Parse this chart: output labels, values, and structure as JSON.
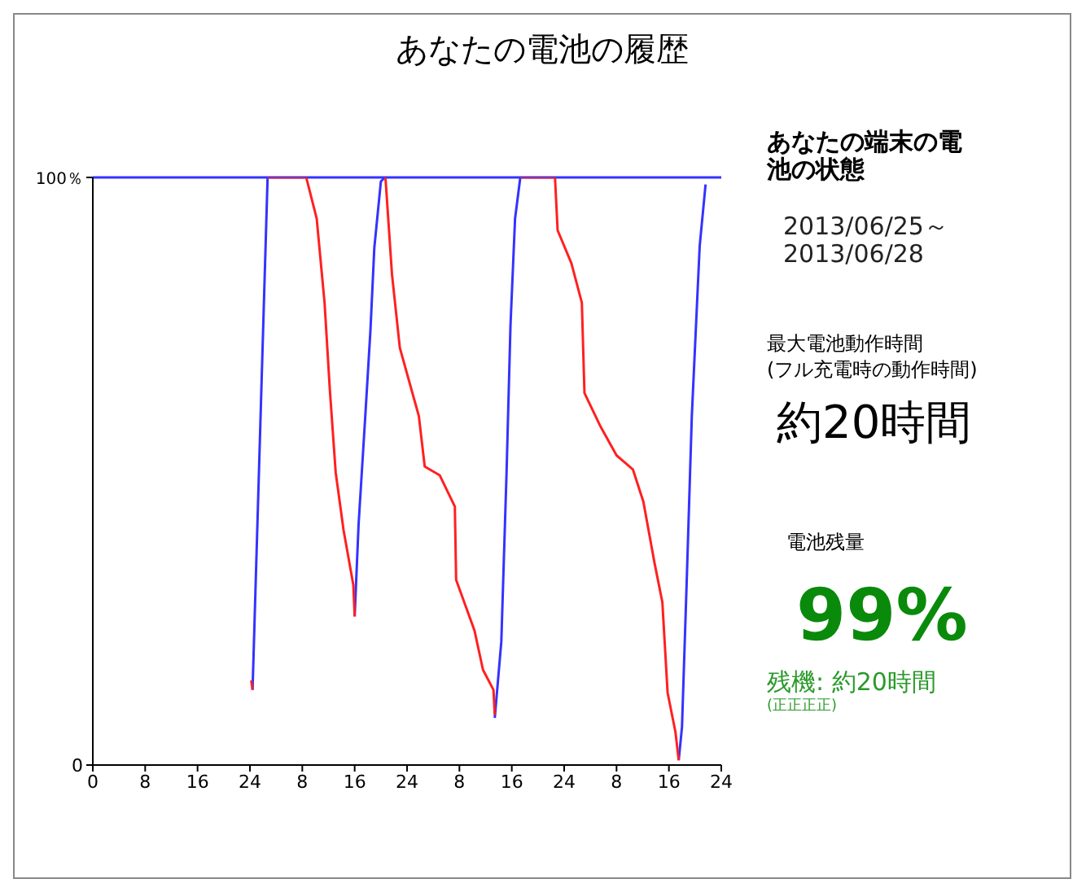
{
  "chart_data": {
    "type": "line",
    "title": "あなたの電池の履歴",
    "xlim": [
      "2013-06-25T00:00",
      "2013-06-29T00:00"
    ],
    "xticks": [
      {
        "value": "2013-06-25T00:00",
        "label": "0"
      },
      {
        "value": "2013-06-25T08:00",
        "label": "8"
      },
      {
        "value": "2013-06-25T16:00",
        "label": "16"
      },
      {
        "value": "2013-06-26T00:00",
        "label": "24"
      },
      {
        "value": "2013-06-26T08:00",
        "label": "8"
      },
      {
        "value": "2013-06-26T16:00",
        "label": "16"
      },
      {
        "value": "2013-06-27T00:00",
        "label": "24"
      },
      {
        "value": "2013-06-27T08:00",
        "label": "8"
      },
      {
        "value": "2013-06-27T16:00",
        "label": "16"
      },
      {
        "value": "2013-06-28T00:00",
        "label": "24"
      },
      {
        "value": "2013-06-28T08:00",
        "label": "8"
      },
      {
        "value": "2013-06-28T16:00",
        "label": "16"
      },
      {
        "value": "2013-06-29T00:00",
        "label": "24"
      }
    ],
    "ylim": [
      0,
      100
    ],
    "yticks": [
      0,
      {
        "value": 100,
        "label": "100％"
      }
    ],
    "grid": false,
    "legend": false,
    "marker": "none",
    "line_style": "solid",
    "ref_lines": [
      {
        "axis": "y",
        "value": 100,
        "color": "#3333ff"
      }
    ],
    "series": [
      {
        "color": "#3333ff",
        "x": [
          "2013-06-26T00:24",
          "2013-06-26T02:42"
        ],
        "values": [
          12.8,
          100
        ]
      },
      {
        "color": "#3333ff",
        "x": [
          "2013-06-26T16:00",
          "2013-06-26T16:36",
          "2013-06-26T17:36",
          "2013-06-26T18:24",
          "2013-06-26T19:00",
          "2013-06-26T20:00",
          "2013-06-26T20:36"
        ],
        "values": [
          25.3,
          41,
          59,
          73.8,
          88,
          99.3,
          100
        ]
      },
      {
        "color": "#3333ff",
        "x": [
          "2013-06-27T13:24",
          "2013-06-27T14:24",
          "2013-06-27T15:12",
          "2013-06-27T15:48",
          "2013-06-27T16:30",
          "2013-06-27T17:18"
        ],
        "values": [
          8,
          21,
          49.8,
          74.8,
          93,
          100
        ]
      },
      {
        "color": "#3333ff",
        "x": [
          "2013-06-28T17:30",
          "2013-06-28T18:00",
          "2013-06-28T18:42",
          "2013-06-28T19:30",
          "2013-06-28T20:42",
          "2013-06-28T21:36"
        ],
        "values": [
          0.8,
          6.5,
          30.6,
          59.4,
          88.3,
          98.8
        ]
      },
      {
        "color": "#ff2020",
        "x": [
          "2013-06-26T00:12",
          "2013-06-26T00:24"
        ],
        "values": [
          14.4,
          12.8
        ]
      },
      {
        "color": "#ff2020",
        "x": [
          "2013-06-26T02:42",
          "2013-06-26T08:36",
          "2013-06-26T10:12",
          "2013-06-26T11:24",
          "2013-06-26T12:12",
          "2013-06-26T13:06",
          "2013-06-26T14:18",
          "2013-06-26T15:48",
          "2013-06-26T16:00"
        ],
        "values": [
          100,
          100,
          93,
          78.7,
          64,
          49.8,
          40,
          30.6,
          25.3
        ]
      },
      {
        "color": "#ff2020",
        "x": [
          "2013-06-26T20:42",
          "2013-06-26T21:42",
          "2013-06-26T22:54",
          "2013-06-27T01:48",
          "2013-06-27T02:42",
          "2013-06-27T05:00",
          "2013-06-27T07:18",
          "2013-06-27T07:30",
          "2013-06-27T10:18",
          "2013-06-27T11:36",
          "2013-06-27T13:12",
          "2013-06-27T13:24"
        ],
        "values": [
          100,
          83.5,
          71,
          59.4,
          50.8,
          49.3,
          44,
          31.5,
          22.9,
          16.2,
          12.8,
          8.5
        ]
      },
      {
        "color": "#ff2020",
        "x": [
          "2013-06-27T17:18",
          "2013-06-27T22:36",
          "2013-06-27T23:00",
          "2013-06-28T01:06",
          "2013-06-28T02:42",
          "2013-06-28T03:06",
          "2013-06-28T05:36",
          "2013-06-28T08:00",
          "2013-06-28T10:30",
          "2013-06-28T12:06",
          "2013-06-28T13:48",
          "2013-06-28T15:00",
          "2013-06-28T15:48",
          "2013-06-28T17:00",
          "2013-06-28T17:30"
        ],
        "values": [
          100,
          100,
          91,
          85.4,
          78.7,
          63.3,
          57.5,
          52.7,
          50.3,
          44.8,
          34.4,
          27.7,
          12.3,
          5.6,
          0.8
        ]
      }
    ],
    "annotations": [
      "あなたの端末の電池の状態",
      "2013/06/25～2013/06/28",
      "最大電池動作時間",
      "(フル充電時の動作時間)",
      "約20時間",
      "電池残量",
      "99%",
      "残機: 約20時間",
      "(正正正正)"
    ]
  }
}
